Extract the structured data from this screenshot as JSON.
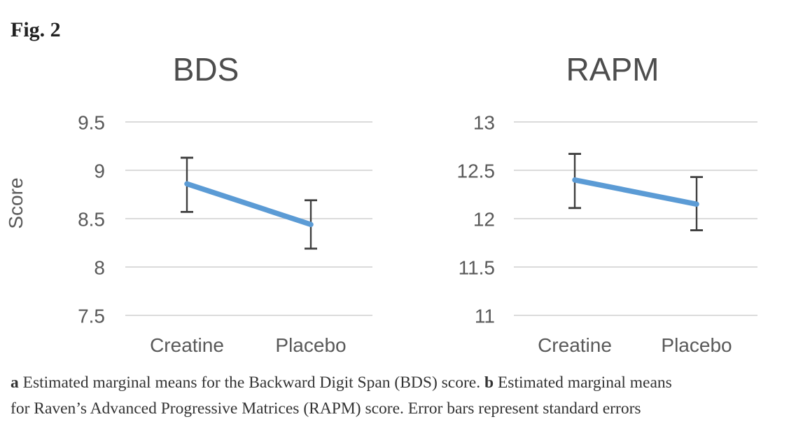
{
  "figure_label": "Fig. 2",
  "colors": {
    "line": "#5B9BD5",
    "error_bar": "#3f3f3f",
    "gridline": "#d6d6d6",
    "axis_text": "#595959",
    "title_text": "#4d4d4d",
    "caption_text": "#333333"
  },
  "chart_data": [
    {
      "type": "line",
      "title": "BDS",
      "ylabel": "Score",
      "xlabel": "",
      "categories": [
        "Creatine",
        "Placebo"
      ],
      "series": [
        {
          "name": "Estimated marginal mean",
          "values": [
            8.86,
            8.44
          ]
        }
      ],
      "error_upper": [
        9.13,
        8.69
      ],
      "error_lower": [
        8.57,
        8.19
      ],
      "yticks": [
        9.5,
        9,
        8.5,
        8,
        7.5
      ],
      "ylim": [
        7.5,
        9.5
      ],
      "grid": true,
      "legend": false
    },
    {
      "type": "line",
      "title": "RAPM",
      "ylabel": "",
      "xlabel": "",
      "categories": [
        "Creatine",
        "Placebo"
      ],
      "series": [
        {
          "name": "Estimated marginal mean",
          "values": [
            12.4,
            12.15
          ]
        }
      ],
      "error_upper": [
        12.67,
        12.43
      ],
      "error_lower": [
        12.11,
        11.88
      ],
      "yticks": [
        13,
        12.5,
        12,
        11.5,
        11
      ],
      "ylim": [
        11,
        13
      ],
      "grid": true,
      "legend": false
    }
  ],
  "caption": {
    "lines": [
      {
        "segments": [
          {
            "text": "a",
            "bold": true
          },
          {
            "text": " Estimated marginal means for the Backward Digit Span (BDS) score. ",
            "bold": false
          },
          {
            "text": "b",
            "bold": true
          },
          {
            "text": " Estimated marginal means",
            "bold": false
          }
        ]
      },
      {
        "segments": [
          {
            "text": "for Raven’s Advanced Progressive Matrices (RAPM) score. Error bars represent standard errors",
            "bold": false
          }
        ]
      }
    ]
  }
}
